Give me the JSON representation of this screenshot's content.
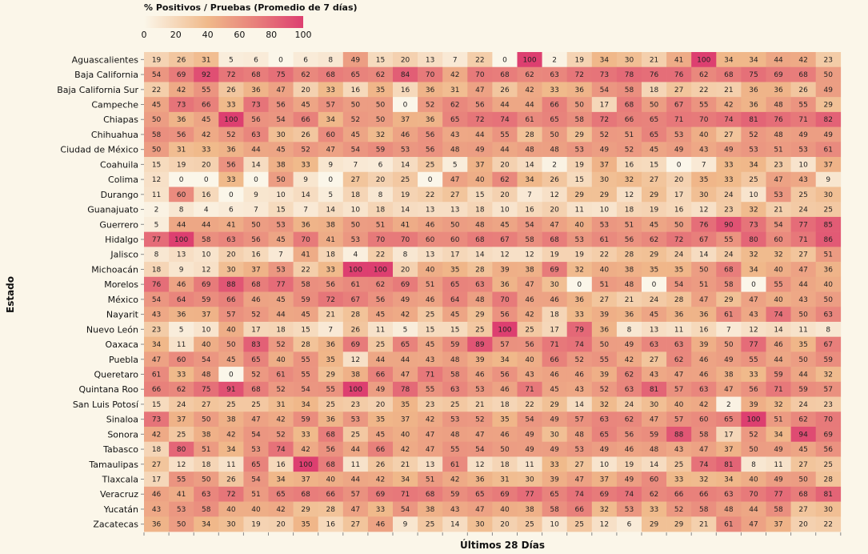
{
  "chart_data": {
    "type": "heatmap",
    "legend_title": "% Positivos / Pruebas (Promedio de 7 días)",
    "legend_ticks": [
      "0",
      "20",
      "40",
      "60",
      "80",
      "100"
    ],
    "color_domain": [
      0,
      100
    ],
    "colors": [
      "#fbf6e9",
      "#f0b98a",
      "#e8807b",
      "#dd3f70"
    ],
    "xlabel": "Últimos 28 Días",
    "ylabel": "Estado",
    "rows": [
      {
        "name": "Aguascalientes",
        "values": [
          19,
          26,
          31,
          5,
          6,
          0,
          6,
          8,
          49,
          15,
          20,
          13,
          7,
          22,
          0,
          100,
          2,
          19,
          34,
          30,
          21,
          41,
          100,
          34,
          34,
          44,
          42,
          23
        ]
      },
      {
        "name": "Baja California",
        "values": [
          54,
          69,
          92,
          72,
          68,
          75,
          62,
          68,
          65,
          62,
          84,
          70,
          42,
          70,
          68,
          62,
          63,
          72,
          73,
          78,
          76,
          76,
          62,
          68,
          75,
          69,
          68,
          50
        ]
      },
      {
        "name": "Baja California Sur",
        "values": [
          22,
          42,
          55,
          26,
          36,
          47,
          20,
          33,
          16,
          35,
          16,
          36,
          31,
          47,
          26,
          42,
          33,
          36,
          54,
          58,
          18,
          27,
          22,
          21,
          36,
          36,
          26,
          49
        ]
      },
      {
        "name": "Campeche",
        "values": [
          45,
          73,
          66,
          33,
          73,
          56,
          45,
          57,
          50,
          50,
          0,
          52,
          62,
          56,
          44,
          44,
          66,
          50,
          17,
          68,
          50,
          67,
          55,
          42,
          36,
          48,
          55,
          29
        ]
      },
      {
        "name": "Chiapas",
        "values": [
          50,
          36,
          45,
          100,
          56,
          54,
          66,
          34,
          52,
          50,
          37,
          36,
          65,
          72,
          74,
          61,
          65,
          58,
          72,
          66,
          65,
          71,
          70,
          74,
          81,
          76,
          71,
          82
        ]
      },
      {
        "name": "Chihuahua",
        "values": [
          58,
          56,
          42,
          52,
          63,
          30,
          26,
          60,
          45,
          32,
          46,
          56,
          43,
          44,
          55,
          28,
          50,
          29,
          52,
          51,
          65,
          53,
          40,
          27,
          52,
          48,
          49,
          49
        ]
      },
      {
        "name": "Ciudad de México",
        "values": [
          50,
          31,
          33,
          36,
          44,
          45,
          52,
          47,
          54,
          59,
          53,
          56,
          48,
          49,
          44,
          48,
          48,
          53,
          49,
          52,
          45,
          49,
          43,
          49,
          53,
          51,
          53,
          61
        ]
      },
      {
        "name": "Coahuila",
        "values": [
          15,
          19,
          20,
          56,
          14,
          38,
          33,
          9,
          7,
          6,
          14,
          25,
          5,
          37,
          20,
          14,
          2,
          19,
          37,
          16,
          15,
          0,
          7,
          33,
          34,
          23,
          10,
          37
        ]
      },
      {
        "name": "Colima",
        "values": [
          12,
          0,
          0,
          33,
          0,
          50,
          9,
          0,
          27,
          20,
          25,
          0,
          47,
          40,
          62,
          34,
          26,
          15,
          30,
          32,
          27,
          20,
          35,
          33,
          25,
          47,
          43,
          9
        ]
      },
      {
        "name": "Durango",
        "values": [
          11,
          60,
          16,
          0,
          9,
          10,
          14,
          5,
          18,
          8,
          19,
          22,
          27,
          15,
          20,
          7,
          12,
          29,
          29,
          12,
          29,
          17,
          30,
          24,
          10,
          53,
          25,
          30
        ]
      },
      {
        "name": "Guanajuato",
        "values": [
          2,
          8,
          4,
          6,
          7,
          15,
          7,
          14,
          10,
          18,
          14,
          13,
          13,
          18,
          10,
          16,
          20,
          11,
          10,
          18,
          19,
          16,
          12,
          23,
          32,
          21,
          24,
          25
        ]
      },
      {
        "name": "Guerrero",
        "values": [
          5,
          44,
          44,
          41,
          50,
          53,
          36,
          38,
          50,
          51,
          41,
          46,
          50,
          48,
          45,
          54,
          47,
          40,
          53,
          51,
          45,
          50,
          76,
          90,
          73,
          54,
          77,
          85
        ]
      },
      {
        "name": "Hidalgo",
        "values": [
          77,
          100,
          58,
          63,
          56,
          45,
          70,
          41,
          53,
          70,
          70,
          60,
          60,
          68,
          67,
          58,
          68,
          53,
          61,
          56,
          62,
          72,
          67,
          55,
          80,
          60,
          71,
          86
        ]
      },
      {
        "name": "Jalisco",
        "values": [
          8,
          13,
          10,
          20,
          16,
          7,
          41,
          18,
          4,
          22,
          8,
          13,
          17,
          14,
          12,
          12,
          19,
          19,
          22,
          28,
          29,
          24,
          14,
          24,
          32,
          32,
          27,
          51
        ]
      },
      {
        "name": "Michoacán",
        "values": [
          18,
          9,
          12,
          30,
          37,
          53,
          22,
          33,
          100,
          100,
          20,
          40,
          35,
          28,
          39,
          38,
          69,
          32,
          40,
          38,
          35,
          35,
          50,
          68,
          34,
          40,
          47,
          36
        ]
      },
      {
        "name": "Morelos",
        "values": [
          76,
          46,
          69,
          88,
          68,
          77,
          58,
          56,
          61,
          62,
          69,
          51,
          65,
          63,
          36,
          47,
          30,
          0,
          51,
          48,
          0,
          54,
          51,
          58,
          0,
          55,
          44,
          40
        ]
      },
      {
        "name": "México",
        "values": [
          54,
          64,
          59,
          66,
          46,
          45,
          59,
          72,
          67,
          56,
          49,
          46,
          64,
          48,
          70,
          46,
          46,
          36,
          27,
          21,
          24,
          28,
          47,
          29,
          47,
          40,
          43,
          50
        ]
      },
      {
        "name": "Nayarit",
        "values": [
          43,
          36,
          37,
          57,
          52,
          44,
          45,
          21,
          28,
          45,
          42,
          25,
          45,
          29,
          56,
          42,
          18,
          33,
          39,
          36,
          45,
          36,
          36,
          61,
          43,
          74,
          50,
          63
        ]
      },
      {
        "name": "Nuevo León",
        "values": [
          23,
          5,
          10,
          40,
          17,
          18,
          15,
          7,
          26,
          11,
          5,
          15,
          15,
          25,
          100,
          25,
          17,
          79,
          36,
          8,
          13,
          11,
          16,
          7,
          12,
          14,
          11,
          8
        ]
      },
      {
        "name": "Oaxaca",
        "values": [
          34,
          11,
          40,
          50,
          83,
          52,
          28,
          36,
          69,
          25,
          65,
          45,
          59,
          89,
          57,
          56,
          71,
          74,
          50,
          49,
          63,
          63,
          39,
          50,
          77,
          46,
          35,
          67
        ]
      },
      {
        "name": "Puebla",
        "values": [
          47,
          60,
          54,
          45,
          65,
          40,
          55,
          35,
          12,
          44,
          44,
          43,
          48,
          39,
          34,
          40,
          66,
          52,
          55,
          42,
          27,
          62,
          46,
          49,
          55,
          44,
          50,
          59
        ]
      },
      {
        "name": "Queretaro",
        "values": [
          61,
          33,
          48,
          0,
          52,
          61,
          55,
          29,
          38,
          66,
          47,
          71,
          58,
          46,
          56,
          43,
          46,
          46,
          39,
          62,
          43,
          47,
          46,
          38,
          33,
          59,
          44,
          32
        ]
      },
      {
        "name": "Quintana Roo",
        "values": [
          66,
          62,
          75,
          91,
          68,
          52,
          54,
          55,
          100,
          49,
          78,
          55,
          63,
          53,
          46,
          71,
          45,
          43,
          52,
          63,
          81,
          57,
          63,
          47,
          56,
          71,
          59,
          57
        ]
      },
      {
        "name": "San Luis Potosí",
        "values": [
          15,
          24,
          27,
          25,
          25,
          31,
          34,
          25,
          23,
          20,
          35,
          23,
          25,
          21,
          18,
          22,
          29,
          14,
          32,
          24,
          30,
          40,
          42,
          2,
          39,
          32,
          24,
          23
        ]
      },
      {
        "name": "Sinaloa",
        "values": [
          73,
          37,
          50,
          38,
          47,
          42,
          59,
          36,
          53,
          35,
          37,
          42,
          53,
          52,
          35,
          54,
          49,
          57,
          63,
          62,
          47,
          57,
          60,
          65,
          100,
          51,
          62,
          70
        ]
      },
      {
        "name": "Sonora",
        "values": [
          42,
          25,
          38,
          42,
          54,
          52,
          33,
          68,
          25,
          45,
          40,
          47,
          48,
          47,
          46,
          49,
          30,
          48,
          65,
          56,
          59,
          88,
          58,
          17,
          52,
          34,
          94,
          69
        ]
      },
      {
        "name": "Tabasco",
        "values": [
          18,
          80,
          51,
          34,
          53,
          74,
          42,
          56,
          44,
          66,
          42,
          47,
          55,
          54,
          50,
          49,
          49,
          53,
          49,
          46,
          48,
          43,
          47,
          37,
          50,
          49,
          45,
          56
        ]
      },
      {
        "name": "Tamaulipas",
        "values": [
          27,
          12,
          18,
          11,
          65,
          16,
          100,
          68,
          11,
          26,
          21,
          13,
          61,
          12,
          18,
          11,
          33,
          27,
          10,
          19,
          14,
          25,
          74,
          81,
          8,
          11,
          27,
          25
        ]
      },
      {
        "name": "Tlaxcala",
        "values": [
          17,
          55,
          50,
          26,
          54,
          34,
          37,
          40,
          44,
          42,
          34,
          51,
          42,
          36,
          31,
          30,
          39,
          47,
          37,
          49,
          60,
          33,
          32,
          34,
          40,
          49,
          50,
          28
        ]
      },
      {
        "name": "Veracruz",
        "values": [
          46,
          41,
          63,
          72,
          51,
          65,
          68,
          66,
          57,
          69,
          71,
          68,
          59,
          65,
          69,
          77,
          65,
          74,
          69,
          74,
          62,
          66,
          66,
          63,
          70,
          77,
          68,
          81
        ]
      },
      {
        "name": "Yucatán",
        "values": [
          43,
          53,
          58,
          40,
          40,
          42,
          29,
          28,
          47,
          33,
          54,
          38,
          43,
          47,
          40,
          38,
          58,
          66,
          32,
          53,
          33,
          52,
          58,
          48,
          44,
          58,
          27,
          30
        ]
      },
      {
        "name": "Zacatecas",
        "values": [
          36,
          50,
          34,
          30,
          19,
          20,
          35,
          16,
          27,
          46,
          9,
          25,
          14,
          30,
          20,
          25,
          10,
          25,
          12,
          6,
          29,
          29,
          21,
          61,
          47,
          37,
          20,
          22
        ]
      }
    ]
  }
}
